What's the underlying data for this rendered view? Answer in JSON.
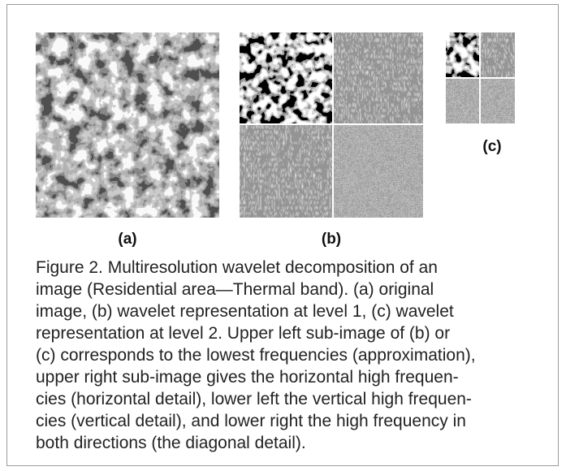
{
  "figure": {
    "panel_labels": [
      "(a)",
      "(b)",
      "(c)"
    ],
    "caption_lines": [
      "Figure 2.  Multiresolution wavelet decomposition of an",
      "image (Residential area—Thermal band). (a) original",
      "image, (b) wavelet representation at level 1, (c) wavelet",
      "representation at level 2. Upper left sub-image of (b) or",
      "(c) corresponds to the lowest frequencies (approximation),",
      "upper right sub-image gives the horizontal high frequen-",
      "cies (horizontal detail), lower left the vertical high frequen-",
      "cies (vertical detail), and lower right the high frequency in",
      "both directions (the diagonal detail)."
    ]
  }
}
